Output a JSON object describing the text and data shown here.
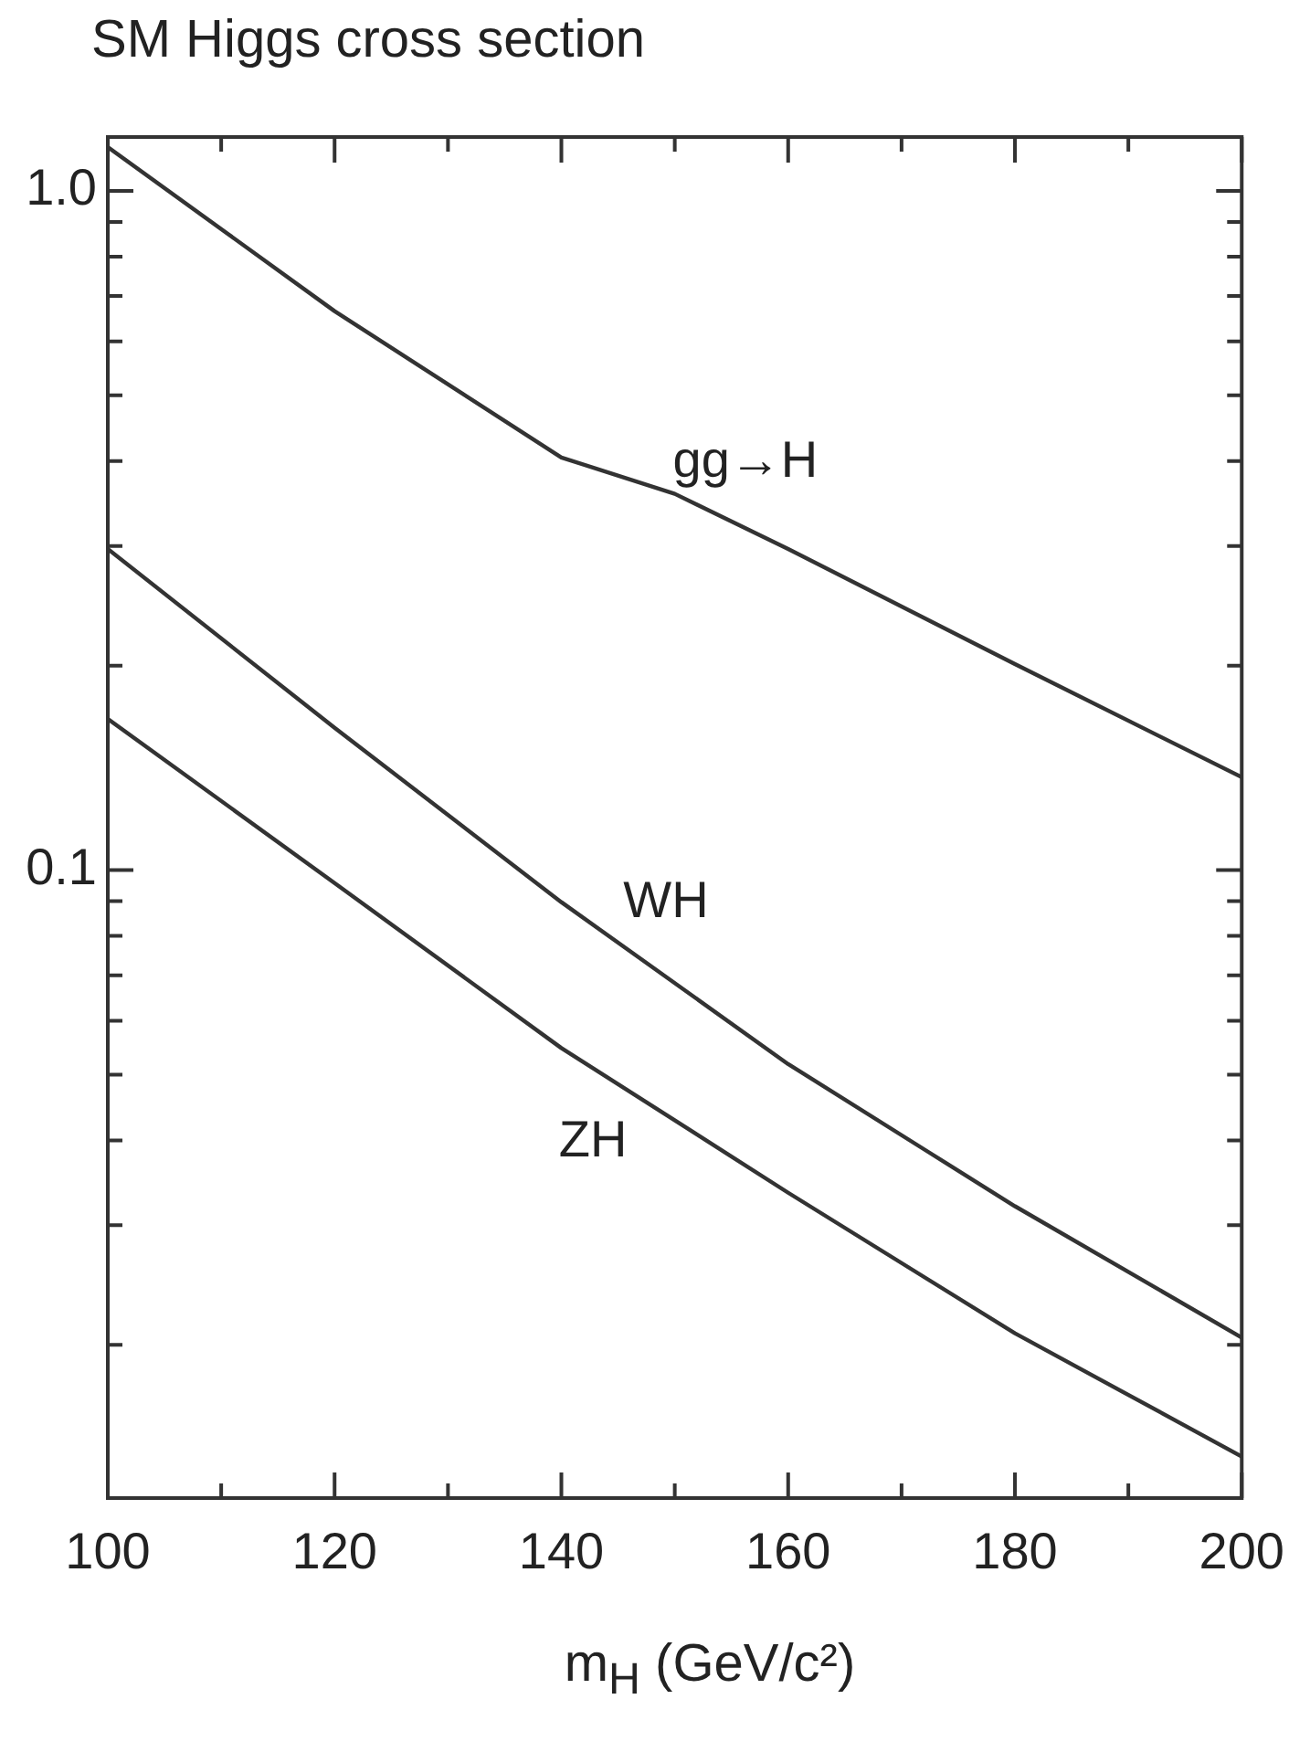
{
  "chart_data": {
    "type": "line",
    "title": "SM Higgs cross section",
    "xlabel": "m$_{H}$ (GeV/c²)",
    "log": "y",
    "marker": "none",
    "line_style": "solid",
    "xlim": [
      100,
      200
    ],
    "ylim": [
      0.0119,
      1.2
    ],
    "xticks": [
      100,
      {
        "value": 110,
        "label": null
      },
      120,
      {
        "value": 130,
        "label": null
      },
      140,
      {
        "value": 150,
        "label": null
      },
      160,
      {
        "value": 170,
        "label": null
      },
      180,
      {
        "value": 190,
        "label": null
      },
      200
    ],
    "yticks": [
      {
        "value": 0.02,
        "label": null
      },
      {
        "value": 0.03,
        "label": null
      },
      {
        "value": 0.04,
        "label": null
      },
      {
        "value": 0.05,
        "label": null
      },
      {
        "value": 0.06,
        "label": null
      },
      {
        "value": 0.07,
        "label": null
      },
      {
        "value": 0.08,
        "label": null
      },
      {
        "value": 0.09,
        "label": null
      },
      {
        "value": 0.1,
        "label": "0.1"
      },
      {
        "value": 0.2,
        "label": null
      },
      {
        "value": 0.3,
        "label": null
      },
      {
        "value": 0.4,
        "label": null
      },
      {
        "value": 0.5,
        "label": null
      },
      {
        "value": 0.6,
        "label": null
      },
      {
        "value": 0.7,
        "label": null
      },
      {
        "value": 0.8,
        "label": null
      },
      {
        "value": 0.9,
        "label": null
      },
      {
        "value": 1,
        "label": "1.0"
      }
    ],
    "series": [
      {
        "name": "gg→H",
        "color": "#333333",
        "x": [
          100,
          120,
          140,
          150,
          160,
          180,
          200
        ],
        "values": [
          1.16,
          0.665,
          0.405,
          0.358,
          0.297,
          0.201,
          0.137
        ]
      },
      {
        "name": "WH",
        "color": "#333333",
        "x": [
          100,
          120,
          140,
          160,
          180,
          200
        ],
        "values": [
          0.297,
          0.162,
          0.0897,
          0.0518,
          0.032,
          0.0205
        ]
      },
      {
        "name": "ZH",
        "color": "#333333",
        "x": [
          100,
          120,
          140,
          160,
          180,
          200
        ],
        "values": [
          0.167,
          0.0957,
          0.0547,
          0.0335,
          0.0208,
          0.0137
        ]
      }
    ]
  }
}
